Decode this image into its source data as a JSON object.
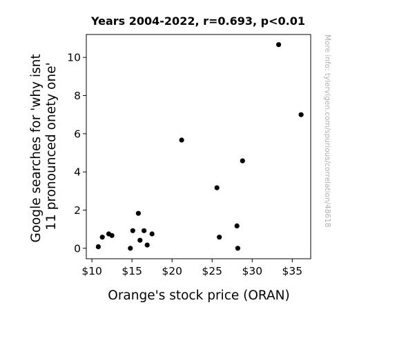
{
  "chart_data": {
    "type": "scatter",
    "title": "Years 2004-2022, r=0.693, p<0.01",
    "xlabel": "Orange's stock price (ORAN)",
    "ylabel_lines": [
      "Google searches for 'why isnt",
      "11 pronounced onety one'"
    ],
    "watermark": "More info: tylervigen.com/spurious/correlation/48618",
    "xlim": [
      9.3,
      37.3
    ],
    "ylim": [
      -0.55,
      11.2
    ],
    "x_ticks": [
      {
        "value": 10,
        "label": "$10"
      },
      {
        "value": 15,
        "label": "$15"
      },
      {
        "value": 20,
        "label": "$20"
      },
      {
        "value": 25,
        "label": "$25"
      },
      {
        "value": 30,
        "label": "$30"
      },
      {
        "value": 35,
        "label": "$35"
      }
    ],
    "y_ticks": [
      {
        "value": 0,
        "label": "0"
      },
      {
        "value": 2,
        "label": "2"
      },
      {
        "value": 4,
        "label": "4"
      },
      {
        "value": 6,
        "label": "6"
      },
      {
        "value": 8,
        "label": "8"
      },
      {
        "value": 10,
        "label": "10"
      }
    ],
    "grid": false,
    "marker_color": "#000000",
    "points": [
      {
        "x": 10.8,
        "y": 0.08
      },
      {
        "x": 11.3,
        "y": 0.58
      },
      {
        "x": 12.1,
        "y": 0.75
      },
      {
        "x": 12.5,
        "y": 0.67
      },
      {
        "x": 14.8,
        "y": 0.0
      },
      {
        "x": 15.1,
        "y": 0.92
      },
      {
        "x": 15.8,
        "y": 1.83
      },
      {
        "x": 16.0,
        "y": 0.42
      },
      {
        "x": 16.5,
        "y": 0.92
      },
      {
        "x": 16.9,
        "y": 0.17
      },
      {
        "x": 17.5,
        "y": 0.75
      },
      {
        "x": 21.2,
        "y": 5.67
      },
      {
        "x": 25.6,
        "y": 3.17
      },
      {
        "x": 25.9,
        "y": 0.58
      },
      {
        "x": 28.1,
        "y": 1.17
      },
      {
        "x": 28.2,
        "y": 0.0
      },
      {
        "x": 28.8,
        "y": 4.58
      },
      {
        "x": 33.3,
        "y": 10.67
      },
      {
        "x": 36.1,
        "y": 7.0
      }
    ]
  }
}
